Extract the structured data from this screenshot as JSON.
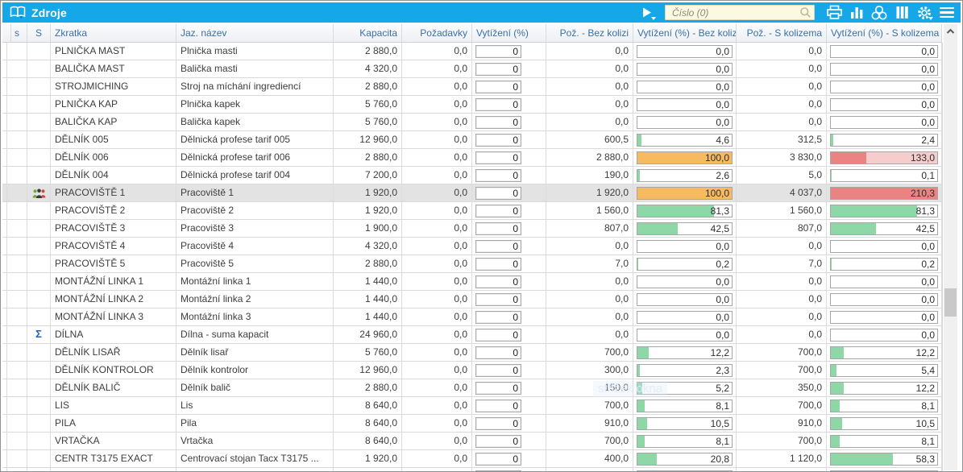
{
  "window": {
    "title": "Zdroje"
  },
  "toolbar": {
    "run_button": "run-icon",
    "search": {
      "placeholder": "Číslo (0)",
      "value": ""
    },
    "icons": [
      "printer-icon",
      "bar-chart-icon",
      "relations-icon",
      "columns-icon",
      "settings-gear-icon",
      "menu-icon"
    ]
  },
  "watermark": {
    "text": "střižek okna"
  },
  "theme": {
    "titlebar_blue": "#16a7e9",
    "header_text": "#3a70a8",
    "green": "#8ed7a6",
    "orange": "#f6ba60",
    "red": "#ec8383",
    "red_light": "#f6cdcd",
    "selected_row": "#e3e3e3"
  },
  "table": {
    "columns": [
      "s",
      "S",
      "Zkratka",
      "Jaz. název",
      "Kapacita",
      "Požadavky",
      "Vytížení (%)",
      "Pož. - Bez kolizi",
      "Vytížení (%) - Bez kolizi",
      "Pož. - S kolizema",
      "Vytížení (%) - S kolizema"
    ],
    "rows": [
      {
        "zkratka": "PLNIČKA MAST",
        "nazev": "Plnička masti",
        "kapacita": "2 880,0",
        "pozadavky": "0,0",
        "vytizeni": "0",
        "poz_bez": "0,0",
        "vyt_bez": {
          "label": "0,0",
          "pct": 0
        },
        "poz_s": "0,0",
        "vyt_s": {
          "label": "0,0",
          "pct": 0
        },
        "icon": null,
        "selected": false
      },
      {
        "zkratka": "BALIČKA MAST",
        "nazev": "Balička masti",
        "kapacita": "4 320,0",
        "pozadavky": "0,0",
        "vytizeni": "0",
        "poz_bez": "0,0",
        "vyt_bez": {
          "label": "0,0",
          "pct": 0
        },
        "poz_s": "0,0",
        "vyt_s": {
          "label": "0,0",
          "pct": 0
        },
        "icon": null,
        "selected": false
      },
      {
        "zkratka": "STROJMICHING",
        "nazev": "Stroj na míchání ingrediencí",
        "kapacita": "2 880,0",
        "pozadavky": "0,0",
        "vytizeni": "0",
        "poz_bez": "0,0",
        "vyt_bez": {
          "label": "0,0",
          "pct": 0
        },
        "poz_s": "0,0",
        "vyt_s": {
          "label": "0,0",
          "pct": 0
        },
        "icon": null,
        "selected": false
      },
      {
        "zkratka": "PLNIČKA KAP",
        "nazev": "Plnička kapek",
        "kapacita": "5 760,0",
        "pozadavky": "0,0",
        "vytizeni": "0",
        "poz_bez": "0,0",
        "vyt_bez": {
          "label": "0,0",
          "pct": 0
        },
        "poz_s": "0,0",
        "vyt_s": {
          "label": "0,0",
          "pct": 0
        },
        "icon": null,
        "selected": false
      },
      {
        "zkratka": "BALIČKA KAP",
        "nazev": "Balička kapek",
        "kapacita": "5 760,0",
        "pozadavky": "0,0",
        "vytizeni": "0",
        "poz_bez": "0,0",
        "vyt_bez": {
          "label": "0,0",
          "pct": 0
        },
        "poz_s": "0,0",
        "vyt_s": {
          "label": "0,0",
          "pct": 0
        },
        "icon": null,
        "selected": false
      },
      {
        "zkratka": "DĚLNÍK 005",
        "nazev": "Dělnická profese tarif 005",
        "kapacita": "12 960,0",
        "pozadavky": "0,0",
        "vytizeni": "0",
        "poz_bez": "600,5",
        "vyt_bez": {
          "label": "4,6",
          "pct": 4.6
        },
        "poz_s": "312,5",
        "vyt_s": {
          "label": "2,4",
          "pct": 2.4
        },
        "icon": null,
        "selected": false
      },
      {
        "zkratka": "DĚLNÍK 006",
        "nazev": "Dělnická profese tarif 006",
        "kapacita": "2 880,0",
        "pozadavky": "0,0",
        "vytizeni": "0",
        "poz_bez": "2 880,0",
        "vyt_bez": {
          "label": "100,0",
          "pct": 100
        },
        "poz_s": "3 830,0",
        "vyt_s": {
          "label": "133,0",
          "pct": 133
        },
        "icon": null,
        "selected": false
      },
      {
        "zkratka": "DĚLNÍK 004",
        "nazev": "Dělnická profese tarif 004",
        "kapacita": "7 200,0",
        "pozadavky": "0,0",
        "vytizeni": "0",
        "poz_bez": "190,0",
        "vyt_bez": {
          "label": "2,6",
          "pct": 2.6
        },
        "poz_s": "5,0",
        "vyt_s": {
          "label": "0,1",
          "pct": 0.1
        },
        "icon": null,
        "selected": false
      },
      {
        "zkratka": "PRACOVIŠTĚ 1",
        "nazev": "Pracoviště 1",
        "kapacita": "1 920,0",
        "pozadavky": "0,0",
        "vytizeni": "0",
        "poz_bez": "1 920,0",
        "vyt_bez": {
          "label": "100,0",
          "pct": 100
        },
        "poz_s": "4 037,0",
        "vyt_s": {
          "label": "210,3",
          "pct": 210.3
        },
        "icon": "people-group",
        "selected": true
      },
      {
        "zkratka": "PRACOVIŠTĚ 2",
        "nazev": "Pracoviště 2",
        "kapacita": "1 920,0",
        "pozadavky": "0,0",
        "vytizeni": "0",
        "poz_bez": "1 560,0",
        "vyt_bez": {
          "label": "81,3",
          "pct": 81.3
        },
        "poz_s": "1 560,0",
        "vyt_s": {
          "label": "81,3",
          "pct": 81.3
        },
        "icon": null,
        "selected": false
      },
      {
        "zkratka": "PRACOVIŠTĚ 3",
        "nazev": "Pracoviště 3",
        "kapacita": "1 900,0",
        "pozadavky": "0,0",
        "vytizeni": "0",
        "poz_bez": "807,0",
        "vyt_bez": {
          "label": "42,5",
          "pct": 42.5
        },
        "poz_s": "807,0",
        "vyt_s": {
          "label": "42,5",
          "pct": 42.5
        },
        "icon": null,
        "selected": false
      },
      {
        "zkratka": "PRACOVIŠTĚ 4",
        "nazev": "Pracoviště 4",
        "kapacita": "4 320,0",
        "pozadavky": "0,0",
        "vytizeni": "0",
        "poz_bez": "0,0",
        "vyt_bez": {
          "label": "0,0",
          "pct": 0
        },
        "poz_s": "0,0",
        "vyt_s": {
          "label": "0,0",
          "pct": 0
        },
        "icon": null,
        "selected": false
      },
      {
        "zkratka": "PRACOVIŠTĚ 5",
        "nazev": "Pracoviště 5",
        "kapacita": "2 880,0",
        "pozadavky": "0,0",
        "vytizeni": "0",
        "poz_bez": "7,0",
        "vyt_bez": {
          "label": "0,2",
          "pct": 0.2
        },
        "poz_s": "7,0",
        "vyt_s": {
          "label": "0,2",
          "pct": 0.2
        },
        "icon": null,
        "selected": false
      },
      {
        "zkratka": "MONTÁŽNÍ LINKA 1",
        "nazev": "Montážní linka 1",
        "kapacita": "1 440,0",
        "pozadavky": "0,0",
        "vytizeni": "0",
        "poz_bez": "0,0",
        "vyt_bez": {
          "label": "0,0",
          "pct": 0
        },
        "poz_s": "0,0",
        "vyt_s": {
          "label": "0,0",
          "pct": 0
        },
        "icon": null,
        "selected": false
      },
      {
        "zkratka": "MONTÁŽNÍ LINKA 2",
        "nazev": "Montážní linka 2",
        "kapacita": "1 440,0",
        "pozadavky": "0,0",
        "vytizeni": "0",
        "poz_bez": "0,0",
        "vyt_bez": {
          "label": "0,0",
          "pct": 0
        },
        "poz_s": "0,0",
        "vyt_s": {
          "label": "0,0",
          "pct": 0
        },
        "icon": null,
        "selected": false
      },
      {
        "zkratka": "MONTÁŽNÍ LINKA 3",
        "nazev": "Montážní linka 3",
        "kapacita": "1 440,0",
        "pozadavky": "0,0",
        "vytizeni": "0",
        "poz_bez": "0,0",
        "vyt_bez": {
          "label": "0,0",
          "pct": 0
        },
        "poz_s": "0,0",
        "vyt_s": {
          "label": "0,0",
          "pct": 0
        },
        "icon": null,
        "selected": false
      },
      {
        "zkratka": "DÍLNA",
        "nazev": "Dílna - suma kapacit",
        "kapacita": "24 960,0",
        "pozadavky": "0,0",
        "vytizeni": "0",
        "poz_bez": "0,0",
        "vyt_bez": {
          "label": "0,0",
          "pct": 0
        },
        "poz_s": "0,0",
        "vyt_s": {
          "label": "0,0",
          "pct": 0
        },
        "icon": "sigma",
        "selected": false
      },
      {
        "zkratka": "DĚLNÍK LISAŘ",
        "nazev": "Dělník lisař",
        "kapacita": "5 760,0",
        "pozadavky": "0,0",
        "vytizeni": "0",
        "poz_bez": "700,0",
        "vyt_bez": {
          "label": "12,2",
          "pct": 12.2
        },
        "poz_s": "700,0",
        "vyt_s": {
          "label": "12,2",
          "pct": 12.2
        },
        "icon": null,
        "selected": false
      },
      {
        "zkratka": "DĚLNÍK KONTROLOR",
        "nazev": "Dělník kontrolor",
        "kapacita": "12 960,0",
        "pozadavky": "0,0",
        "vytizeni": "0",
        "poz_bez": "300,0",
        "vyt_bez": {
          "label": "2,3",
          "pct": 2.3
        },
        "poz_s": "700,0",
        "vyt_s": {
          "label": "5,4",
          "pct": 5.4
        },
        "icon": null,
        "selected": false
      },
      {
        "zkratka": "DĚLNÍK BALIČ",
        "nazev": "Dělník balič",
        "kapacita": "2 880,0",
        "pozadavky": "0,0",
        "vytizeni": "0",
        "poz_bez": "150,0",
        "vyt_bez": {
          "label": "5,2",
          "pct": 5.2
        },
        "poz_s": "350,0",
        "vyt_s": {
          "label": "12,2",
          "pct": 12.2
        },
        "icon": null,
        "selected": false
      },
      {
        "zkratka": "LIS",
        "nazev": "Lis",
        "kapacita": "8 640,0",
        "pozadavky": "0,0",
        "vytizeni": "0",
        "poz_bez": "700,0",
        "vyt_bez": {
          "label": "8,1",
          "pct": 8.1
        },
        "poz_s": "700,0",
        "vyt_s": {
          "label": "8,1",
          "pct": 8.1
        },
        "icon": null,
        "selected": false
      },
      {
        "zkratka": "PILA",
        "nazev": "Pila",
        "kapacita": "8 640,0",
        "pozadavky": "0,0",
        "vytizeni": "0",
        "poz_bez": "910,0",
        "vyt_bez": {
          "label": "10,5",
          "pct": 10.5
        },
        "poz_s": "910,0",
        "vyt_s": {
          "label": "10,5",
          "pct": 10.5
        },
        "icon": null,
        "selected": false
      },
      {
        "zkratka": "VRTAČKA",
        "nazev": "Vrtačka",
        "kapacita": "8 640,0",
        "pozadavky": "0,0",
        "vytizeni": "0",
        "poz_bez": "700,0",
        "vyt_bez": {
          "label": "8,1",
          "pct": 8.1
        },
        "poz_s": "700,0",
        "vyt_s": {
          "label": "8,1",
          "pct": 8.1
        },
        "icon": null,
        "selected": false
      },
      {
        "zkratka": "CENTR T3175 EXACT",
        "nazev": "Centrovací stojan Tacx T3175 ...",
        "kapacita": "1 920,0",
        "pozadavky": "0,0",
        "vytizeni": "0",
        "poz_bez": "400,0",
        "vyt_bez": {
          "label": "20,8",
          "pct": 20.8
        },
        "poz_s": "1 120,0",
        "vyt_s": {
          "label": "58,3",
          "pct": 58.3
        },
        "icon": null,
        "selected": false
      },
      {
        "zkratka": "",
        "nazev": "",
        "kapacita": "",
        "pozadavky": "",
        "vytizeni": "",
        "poz_bez": "",
        "vyt_bez": {
          "label": "",
          "pct": 15
        },
        "poz_s": "",
        "vyt_s": {
          "label": "",
          "pct": 55
        },
        "icon": null,
        "selected": false,
        "partial": true
      }
    ]
  }
}
